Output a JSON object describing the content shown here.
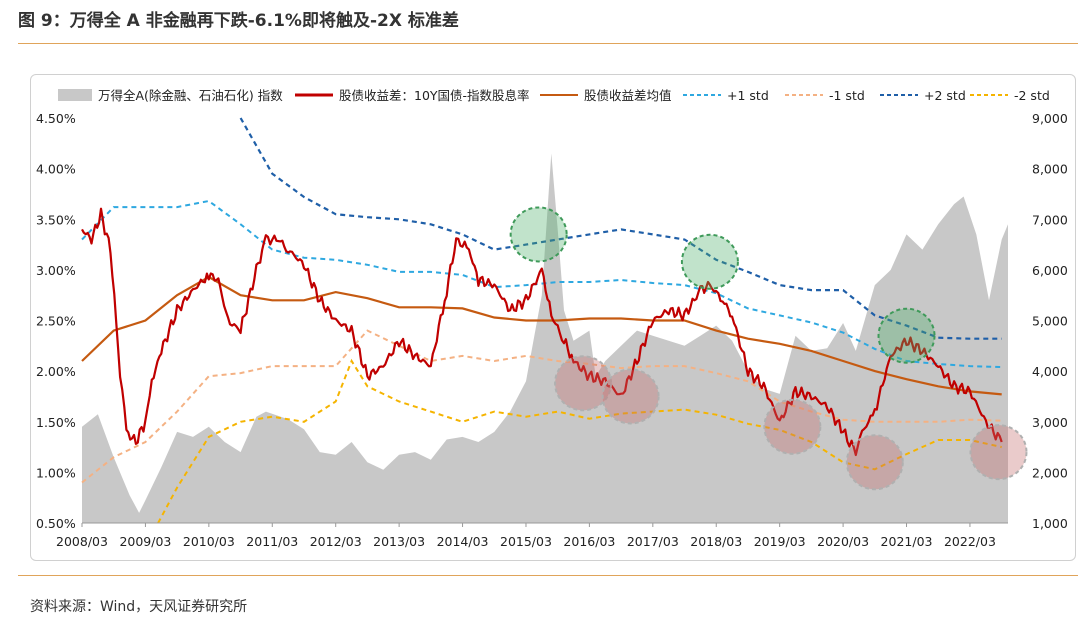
{
  "figure": {
    "title": "图 9：万得全 A 非金融再下跌-6.1%即将触及-2X 标准差",
    "source": "资料来源：Wind，天风证券研究所"
  },
  "chart_data": {
    "type": "line",
    "legend_position": "top",
    "grid": false,
    "legend": [
      "万得全A(除金融、石油石化) 指数",
      "股债收益差：10Y国债-指数股息率",
      "股债收益差均值",
      "+1 std",
      "-1 std",
      "+2 std",
      "-2 std"
    ],
    "x_ticks": [
      "2008/03",
      "2009/03",
      "2010/03",
      "2011/03",
      "2012/03",
      "2013/03",
      "2014/03",
      "2015/03",
      "2016/03",
      "2017/03",
      "2018/03",
      "2019/03",
      "2020/03",
      "2021/03",
      "2022/03"
    ],
    "y_left": {
      "ticks": [
        "0.50%",
        "1.00%",
        "1.50%",
        "2.00%",
        "2.50%",
        "3.00%",
        "3.50%",
        "4.00%",
        "4.50%"
      ],
      "range": [
        0.5,
        4.5
      ]
    },
    "y_right": {
      "ticks": [
        "1,000",
        "2,000",
        "3,000",
        "4,000",
        "5,000",
        "6,000",
        "7,000",
        "8,000",
        "9,000"
      ],
      "range": [
        1000,
        9000
      ]
    },
    "colors": {
      "index": "#c8c8c8",
      "spread": "#c00000",
      "mean": "#c55a11",
      "p1": "#2ea8e0",
      "m1": "#f4b183",
      "p2": "#1f5fa8",
      "m2": "#f5b400",
      "green": "#4caf6a",
      "red": "#c46a6a"
    },
    "series": [
      {
        "name": "万得全A(除金融、石油石化) 指数",
        "axis": "right",
        "points": [
          [
            2008.0,
            2900
          ],
          [
            2008.25,
            3150
          ],
          [
            2008.5,
            2300
          ],
          [
            2008.75,
            1550
          ],
          [
            2008.9,
            1200
          ],
          [
            2009.0,
            1450
          ],
          [
            2009.25,
            2100
          ],
          [
            2009.5,
            2800
          ],
          [
            2009.75,
            2700
          ],
          [
            2010.0,
            2900
          ],
          [
            2010.25,
            2600
          ],
          [
            2010.5,
            2400
          ],
          [
            2010.75,
            3100
          ],
          [
            2010.9,
            3200
          ],
          [
            2011.25,
            3050
          ],
          [
            2011.5,
            2850
          ],
          [
            2011.75,
            2400
          ],
          [
            2012.0,
            2350
          ],
          [
            2012.25,
            2600
          ],
          [
            2012.5,
            2200
          ],
          [
            2012.75,
            2050
          ],
          [
            2013.0,
            2350
          ],
          [
            2013.25,
            2400
          ],
          [
            2013.5,
            2250
          ],
          [
            2013.75,
            2650
          ],
          [
            2014.0,
            2700
          ],
          [
            2014.25,
            2600
          ],
          [
            2014.5,
            2800
          ],
          [
            2014.75,
            3200
          ],
          [
            2015.0,
            3800
          ],
          [
            2015.25,
            5500
          ],
          [
            2015.4,
            8300
          ],
          [
            2015.5,
            6800
          ],
          [
            2015.6,
            5200
          ],
          [
            2015.75,
            4600
          ],
          [
            2016.0,
            4800
          ],
          [
            2016.1,
            3900
          ],
          [
            2016.25,
            4200
          ],
          [
            2016.5,
            4500
          ],
          [
            2016.75,
            4800
          ],
          [
            2017.0,
            4700
          ],
          [
            2017.25,
            4600
          ],
          [
            2017.5,
            4500
          ],
          [
            2017.75,
            4700
          ],
          [
            2018.0,
            4900
          ],
          [
            2018.25,
            4600
          ],
          [
            2018.5,
            4000
          ],
          [
            2018.75,
            3650
          ],
          [
            2019.0,
            3550
          ],
          [
            2019.25,
            4700
          ],
          [
            2019.5,
            4400
          ],
          [
            2019.75,
            4450
          ],
          [
            2020.0,
            4950
          ],
          [
            2020.2,
            4400
          ],
          [
            2020.5,
            5700
          ],
          [
            2020.75,
            6000
          ],
          [
            2021.0,
            6700
          ],
          [
            2021.25,
            6400
          ],
          [
            2021.5,
            6900
          ],
          [
            2021.75,
            7300
          ],
          [
            2021.9,
            7450
          ],
          [
            2022.1,
            6700
          ],
          [
            2022.3,
            5400
          ],
          [
            2022.5,
            6600
          ],
          [
            2022.6,
            6900
          ]
        ]
      },
      {
        "name": "股债收益差：10Y国债-指数股息率",
        "axis": "left",
        "points": [
          [
            2008.0,
            3.4
          ],
          [
            2008.15,
            3.3
          ],
          [
            2008.3,
            3.55
          ],
          [
            2008.45,
            3.2
          ],
          [
            2008.6,
            2.0
          ],
          [
            2008.7,
            1.4
          ],
          [
            2008.85,
            1.3
          ],
          [
            2009.0,
            1.5
          ],
          [
            2009.1,
            1.9
          ],
          [
            2009.25,
            2.2
          ],
          [
            2009.5,
            2.6
          ],
          [
            2009.75,
            2.8
          ],
          [
            2010.0,
            2.95
          ],
          [
            2010.15,
            2.9
          ],
          [
            2010.3,
            2.5
          ],
          [
            2010.5,
            2.4
          ],
          [
            2010.75,
            3.0
          ],
          [
            2010.9,
            3.3
          ],
          [
            2011.1,
            3.3
          ],
          [
            2011.25,
            3.2
          ],
          [
            2011.5,
            3.05
          ],
          [
            2011.75,
            2.7
          ],
          [
            2012.0,
            2.5
          ],
          [
            2012.25,
            2.4
          ],
          [
            2012.5,
            1.95
          ],
          [
            2012.75,
            2.05
          ],
          [
            2013.0,
            2.3
          ],
          [
            2013.25,
            2.15
          ],
          [
            2013.5,
            2.05
          ],
          [
            2013.75,
            2.8
          ],
          [
            2013.9,
            3.3
          ],
          [
            2014.1,
            3.2
          ],
          [
            2014.25,
            2.9
          ],
          [
            2014.5,
            2.85
          ],
          [
            2014.75,
            2.6
          ],
          [
            2015.0,
            2.7
          ],
          [
            2015.25,
            3.0
          ],
          [
            2015.4,
            2.55
          ],
          [
            2015.6,
            2.3
          ],
          [
            2015.75,
            2.1
          ],
          [
            2016.0,
            1.95
          ],
          [
            2016.25,
            1.9
          ],
          [
            2016.5,
            1.75
          ],
          [
            2016.75,
            2.1
          ],
          [
            2017.0,
            2.5
          ],
          [
            2017.25,
            2.6
          ],
          [
            2017.5,
            2.55
          ],
          [
            2017.75,
            2.8
          ],
          [
            2017.9,
            2.85
          ],
          [
            2018.1,
            2.7
          ],
          [
            2018.25,
            2.55
          ],
          [
            2018.5,
            2.0
          ],
          [
            2018.75,
            1.85
          ],
          [
            2019.0,
            1.5
          ],
          [
            2019.25,
            1.8
          ],
          [
            2019.5,
            1.75
          ],
          [
            2019.75,
            1.65
          ],
          [
            2020.0,
            1.4
          ],
          [
            2020.2,
            1.2
          ],
          [
            2020.3,
            1.4
          ],
          [
            2020.5,
            1.6
          ],
          [
            2020.75,
            2.15
          ],
          [
            2021.0,
            2.3
          ],
          [
            2021.25,
            2.2
          ],
          [
            2021.5,
            2.05
          ],
          [
            2021.75,
            1.85
          ],
          [
            2022.0,
            1.8
          ],
          [
            2022.25,
            1.5
          ],
          [
            2022.5,
            1.3
          ]
        ]
      },
      {
        "name": "股债收益差均值",
        "axis": "left",
        "points": [
          [
            2008.0,
            2.1
          ],
          [
            2008.5,
            2.4
          ],
          [
            2009.0,
            2.5
          ],
          [
            2009.5,
            2.75
          ],
          [
            2010.0,
            2.93
          ],
          [
            2010.5,
            2.75
          ],
          [
            2011.0,
            2.7
          ],
          [
            2011.5,
            2.7
          ],
          [
            2012.0,
            2.78
          ],
          [
            2012.5,
            2.72
          ],
          [
            2013.0,
            2.63
          ],
          [
            2013.5,
            2.63
          ],
          [
            2014.0,
            2.62
          ],
          [
            2014.5,
            2.53
          ],
          [
            2015.0,
            2.5
          ],
          [
            2015.5,
            2.5
          ],
          [
            2016.0,
            2.52
          ],
          [
            2016.5,
            2.52
          ],
          [
            2017.0,
            2.5
          ],
          [
            2017.5,
            2.5
          ],
          [
            2018.0,
            2.4
          ],
          [
            2018.5,
            2.32
          ],
          [
            2019.0,
            2.27
          ],
          [
            2019.5,
            2.2
          ],
          [
            2020.0,
            2.1
          ],
          [
            2020.5,
            2.0
          ],
          [
            2021.0,
            1.92
          ],
          [
            2021.5,
            1.85
          ],
          [
            2022.0,
            1.8
          ],
          [
            2022.5,
            1.77
          ]
        ]
      },
      {
        "name": "+1 std",
        "axis": "left",
        "points": [
          [
            2008.0,
            3.3
          ],
          [
            2008.5,
            3.62
          ],
          [
            2009.0,
            3.62
          ],
          [
            2009.5,
            3.62
          ],
          [
            2010.0,
            3.68
          ],
          [
            2010.5,
            3.45
          ],
          [
            2011.0,
            3.2
          ],
          [
            2011.5,
            3.12
          ],
          [
            2012.0,
            3.1
          ],
          [
            2012.5,
            3.05
          ],
          [
            2013.0,
            2.98
          ],
          [
            2013.5,
            2.98
          ],
          [
            2014.0,
            2.95
          ],
          [
            2014.5,
            2.83
          ],
          [
            2015.0,
            2.85
          ],
          [
            2015.5,
            2.88
          ],
          [
            2016.0,
            2.88
          ],
          [
            2016.5,
            2.9
          ],
          [
            2017.0,
            2.87
          ],
          [
            2017.5,
            2.85
          ],
          [
            2018.0,
            2.77
          ],
          [
            2018.5,
            2.62
          ],
          [
            2019.0,
            2.55
          ],
          [
            2019.5,
            2.48
          ],
          [
            2020.0,
            2.38
          ],
          [
            2020.5,
            2.22
          ],
          [
            2021.0,
            2.1
          ],
          [
            2021.5,
            2.07
          ],
          [
            2022.0,
            2.05
          ],
          [
            2022.5,
            2.04
          ]
        ]
      },
      {
        "name": "-1 std",
        "axis": "left",
        "points": [
          [
            2008.0,
            0.9
          ],
          [
            2008.5,
            1.15
          ],
          [
            2009.0,
            1.3
          ],
          [
            2009.5,
            1.6
          ],
          [
            2010.0,
            1.95
          ],
          [
            2010.5,
            1.98
          ],
          [
            2011.0,
            2.05
          ],
          [
            2011.5,
            2.05
          ],
          [
            2012.0,
            2.05
          ],
          [
            2012.5,
            2.4
          ],
          [
            2013.0,
            2.25
          ],
          [
            2013.5,
            2.1
          ],
          [
            2014.0,
            2.15
          ],
          [
            2014.5,
            2.1
          ],
          [
            2015.0,
            2.15
          ],
          [
            2015.5,
            2.1
          ],
          [
            2016.0,
            2.07
          ],
          [
            2016.5,
            2.03
          ],
          [
            2017.0,
            2.05
          ],
          [
            2017.5,
            2.05
          ],
          [
            2018.0,
            1.98
          ],
          [
            2018.5,
            1.9
          ],
          [
            2019.0,
            1.7
          ],
          [
            2019.5,
            1.6
          ],
          [
            2020.0,
            1.52
          ],
          [
            2020.5,
            1.5
          ],
          [
            2021.0,
            1.5
          ],
          [
            2021.5,
            1.5
          ],
          [
            2022.0,
            1.52
          ],
          [
            2022.5,
            1.51
          ]
        ]
      },
      {
        "name": "+2 std",
        "axis": "left",
        "points": [
          [
            2010.5,
            4.5
          ],
          [
            2011.0,
            3.95
          ],
          [
            2011.5,
            3.72
          ],
          [
            2012.0,
            3.55
          ],
          [
            2012.5,
            3.52
          ],
          [
            2013.0,
            3.5
          ],
          [
            2013.5,
            3.45
          ],
          [
            2014.0,
            3.35
          ],
          [
            2014.5,
            3.2
          ],
          [
            2015.0,
            3.25
          ],
          [
            2015.5,
            3.3
          ],
          [
            2016.0,
            3.35
          ],
          [
            2016.5,
            3.4
          ],
          [
            2017.0,
            3.35
          ],
          [
            2017.5,
            3.3
          ],
          [
            2018.0,
            3.1
          ],
          [
            2018.5,
            2.98
          ],
          [
            2019.0,
            2.85
          ],
          [
            2019.5,
            2.8
          ],
          [
            2020.0,
            2.8
          ],
          [
            2020.5,
            2.55
          ],
          [
            2021.0,
            2.45
          ],
          [
            2021.5,
            2.33
          ],
          [
            2022.0,
            2.32
          ],
          [
            2022.5,
            2.32
          ]
        ]
      },
      {
        "name": "-2 std",
        "axis": "left",
        "points": [
          [
            2009.2,
            0.5
          ],
          [
            2009.5,
            0.85
          ],
          [
            2010.0,
            1.35
          ],
          [
            2010.5,
            1.5
          ],
          [
            2011.0,
            1.55
          ],
          [
            2011.5,
            1.5
          ],
          [
            2012.0,
            1.7
          ],
          [
            2012.25,
            2.1
          ],
          [
            2012.5,
            1.85
          ],
          [
            2013.0,
            1.7
          ],
          [
            2013.5,
            1.6
          ],
          [
            2014.0,
            1.5
          ],
          [
            2014.5,
            1.6
          ],
          [
            2015.0,
            1.55
          ],
          [
            2015.5,
            1.6
          ],
          [
            2016.0,
            1.53
          ],
          [
            2016.5,
            1.58
          ],
          [
            2017.0,
            1.6
          ],
          [
            2017.5,
            1.62
          ],
          [
            2018.0,
            1.57
          ],
          [
            2018.5,
            1.48
          ],
          [
            2019.0,
            1.42
          ],
          [
            2019.5,
            1.3
          ],
          [
            2020.0,
            1.1
          ],
          [
            2020.5,
            1.03
          ],
          [
            2021.0,
            1.18
          ],
          [
            2021.5,
            1.32
          ],
          [
            2022.0,
            1.32
          ],
          [
            2022.5,
            1.25
          ]
        ]
      }
    ],
    "highlights": [
      {
        "kind": "green",
        "x": 2015.2,
        "y": 3.35
      },
      {
        "kind": "green",
        "x": 2017.9,
        "y": 3.08
      },
      {
        "kind": "green",
        "x": 2021.0,
        "y": 2.35
      },
      {
        "kind": "red",
        "x": 2015.9,
        "y": 1.88
      },
      {
        "kind": "red",
        "x": 2016.65,
        "y": 1.75
      },
      {
        "kind": "red",
        "x": 2019.2,
        "y": 1.45
      },
      {
        "kind": "red",
        "x": 2020.5,
        "y": 1.1
      },
      {
        "kind": "red",
        "x": 2022.45,
        "y": 1.2
      }
    ]
  }
}
